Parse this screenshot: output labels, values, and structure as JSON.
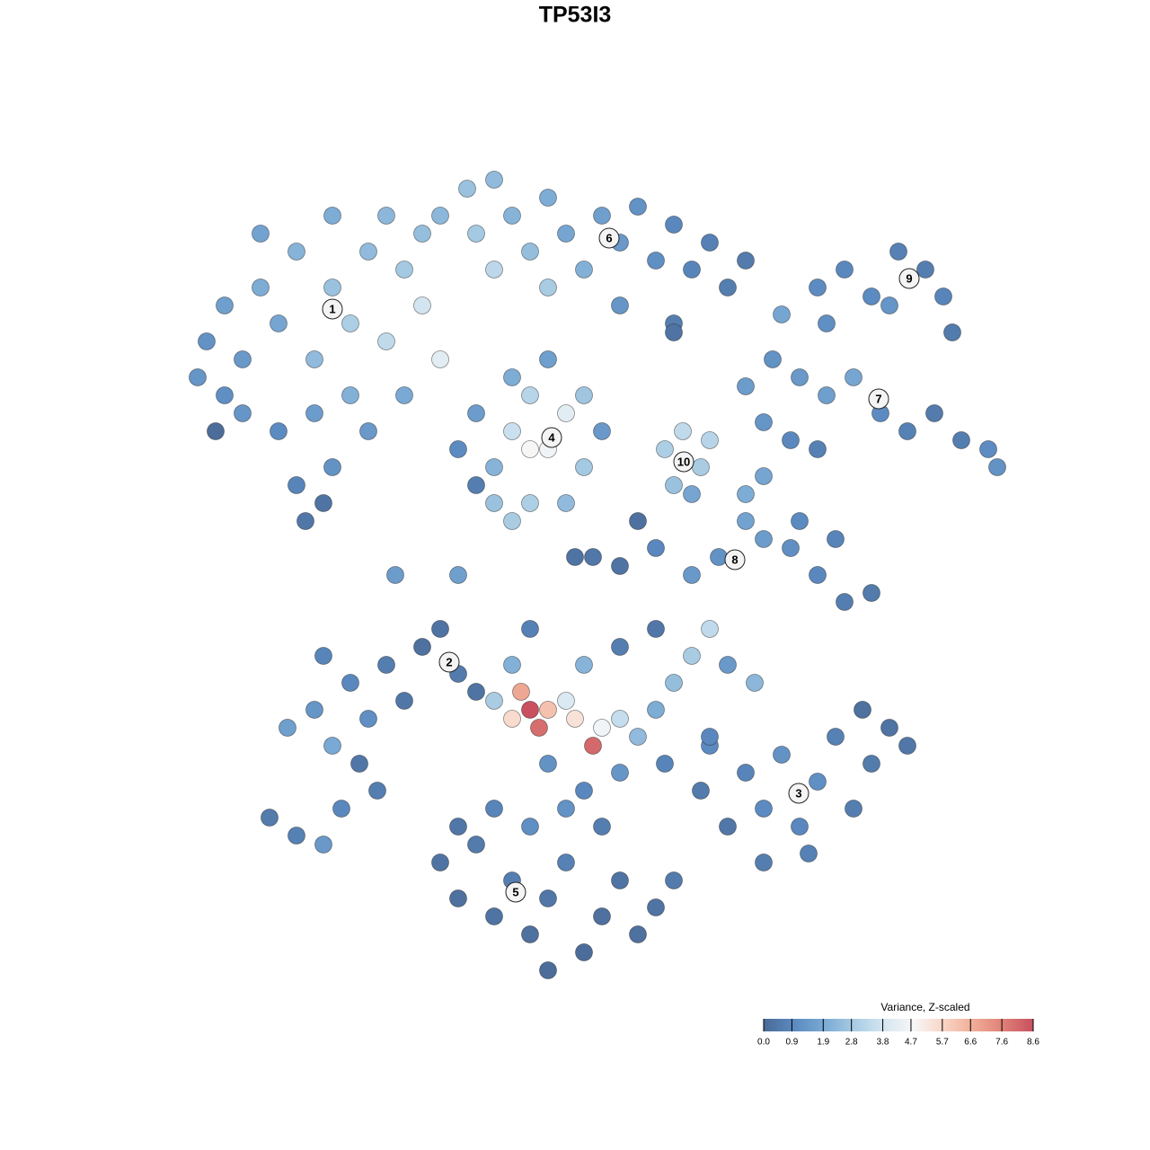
{
  "chart_data": {
    "type": "scatter",
    "title": "TP53I3",
    "xlim": [
      0,
      94
    ],
    "ylim": [
      0,
      92
    ],
    "x": [
      4,
      6,
      8,
      10,
      12,
      14,
      16,
      18,
      20,
      22,
      24,
      26,
      28,
      30,
      8,
      12,
      16,
      20,
      14,
      18,
      15,
      17,
      6,
      22,
      26,
      10,
      18,
      3,
      24,
      28,
      30,
      33,
      36,
      34,
      38,
      40,
      42,
      44,
      46,
      48,
      50,
      52,
      54,
      56,
      58,
      60,
      62,
      64,
      36,
      42,
      50,
      56,
      32,
      34,
      36,
      38,
      40,
      42,
      44,
      46,
      36,
      40,
      44,
      38,
      42,
      46,
      34,
      40,
      48,
      38,
      55,
      57,
      59,
      56,
      60,
      58,
      68,
      72,
      75,
      78,
      81,
      84,
      86,
      87,
      80,
      73,
      64,
      67,
      70,
      73,
      76,
      79,
      82,
      85,
      88,
      91,
      92,
      69,
      72,
      66,
      50,
      54,
      58,
      61,
      64,
      66,
      69,
      72,
      75,
      78,
      70,
      74,
      64,
      66,
      47,
      13,
      16,
      18,
      20,
      22,
      24,
      26,
      28,
      30,
      32,
      34,
      17,
      21,
      11,
      14,
      17,
      19,
      23,
      36,
      38,
      39,
      40,
      41,
      42,
      44,
      45,
      47,
      48,
      50,
      52,
      54,
      56,
      58,
      60,
      62,
      46,
      50,
      54,
      42,
      46,
      50,
      55,
      60,
      40,
      38,
      65,
      59,
      62,
      64,
      66,
      68,
      70,
      72,
      74,
      76,
      78,
      80,
      82,
      71,
      66,
      77,
      60,
      30,
      32,
      34,
      36,
      38,
      40,
      42,
      44,
      46,
      48,
      50,
      52,
      54,
      36,
      40,
      44,
      48,
      42,
      32,
      56,
      25,
      32,
      45,
      52,
      5,
      56
    ],
    "y": [
      72,
      76,
      70,
      78,
      74,
      82,
      70,
      78,
      74,
      82,
      72,
      80,
      76,
      70,
      64,
      62,
      64,
      66,
      56,
      58,
      52,
      54,
      66,
      62,
      66,
      84,
      86,
      68,
      86,
      84,
      86,
      89,
      90,
      84,
      86,
      82,
      88,
      84,
      80,
      86,
      83,
      87,
      81,
      85,
      80,
      83,
      78,
      81,
      80,
      78,
      76,
      74,
      60,
      64,
      58,
      62,
      66,
      60,
      64,
      58,
      54,
      54,
      54,
      68,
      70,
      66,
      56,
      60,
      62,
      52,
      60,
      62,
      58,
      56,
      61,
      55,
      75,
      78,
      80,
      77,
      82,
      80,
      77,
      73,
      76,
      74,
      67,
      70,
      68,
      66,
      68,
      64,
      62,
      64,
      61,
      60,
      58,
      61,
      60,
      63,
      47,
      49,
      46,
      48,
      52,
      50,
      49,
      46,
      43,
      44,
      52,
      50,
      55,
      57,
      48,
      29,
      31,
      27,
      34,
      30,
      36,
      32,
      38,
      40,
      35,
      33,
      37,
      25,
      19,
      17,
      16,
      20,
      22,
      32,
      30,
      33,
      31,
      29,
      31,
      32,
      30,
      27,
      29,
      30,
      28,
      31,
      34,
      37,
      40,
      36,
      36,
      38,
      40,
      25,
      22,
      24,
      25,
      27,
      40,
      36,
      34,
      22,
      18,
      24,
      20,
      26,
      18,
      23,
      28,
      20,
      25,
      29,
      27,
      15,
      14,
      31,
      28,
      14,
      10,
      16,
      8,
      12,
      6,
      10,
      14,
      4,
      8,
      12,
      6,
      9,
      20,
      18,
      20,
      18,
      2,
      18,
      12,
      46,
      46,
      48,
      52,
      62,
      73
    ],
    "color_values": [
      1.2,
      1.6,
      1.4,
      2.0,
      1.8,
      2.2,
      2.4,
      2.6,
      3.0,
      2.4,
      3.4,
      2.8,
      3.8,
      4.2,
      1.3,
      1.0,
      1.5,
      2.1,
      0.8,
      1.2,
      0.4,
      0.3,
      1.1,
      1.4,
      1.9,
      1.7,
      2.0,
      1.3,
      2.3,
      2.5,
      2.3,
      2.6,
      2.4,
      2.8,
      2.2,
      2.5,
      2.0,
      1.8,
      2.1,
      1.6,
      1.4,
      1.2,
      1.1,
      0.9,
      0.8,
      0.7,
      0.6,
      0.5,
      3.3,
      2.9,
      1.3,
      0.6,
      1.0,
      1.5,
      2.2,
      3.6,
      3.2,
      4.6,
      4.2,
      2.8,
      2.6,
      3.0,
      2.4,
      2.0,
      1.6,
      2.7,
      0.6,
      4.8,
      1.4,
      2.9,
      3.0,
      3.4,
      2.9,
      2.6,
      3.2,
      1.8,
      1.8,
      1.0,
      0.9,
      1.0,
      0.7,
      0.6,
      0.8,
      0.5,
      1.3,
      1.1,
      1.5,
      1.2,
      1.4,
      1.6,
      1.8,
      1.0,
      0.7,
      0.5,
      0.6,
      1.0,
      1.2,
      0.9,
      0.7,
      1.3,
      0.3,
      0.9,
      1.4,
      1.2,
      1.7,
      1.5,
      1.1,
      0.9,
      0.6,
      0.5,
      1.0,
      0.8,
      2.0,
      1.8,
      0.4,
      1.6,
      1.3,
      1.9,
      0.9,
      1.1,
      0.6,
      0.4,
      0.2,
      0.3,
      0.5,
      0.3,
      0.8,
      0.4,
      0.5,
      0.7,
      1.4,
      0.9,
      0.6,
      2.9,
      5.6,
      6.8,
      8.6,
      8.0,
      6.2,
      4.0,
      5.4,
      8.1,
      4.6,
      3.5,
      2.4,
      2.0,
      2.5,
      2.9,
      3.4,
      1.4,
      2.2,
      0.6,
      0.4,
      1.2,
      0.9,
      1.3,
      0.8,
      1.0,
      0.7,
      2.1,
      2.3,
      0.5,
      0.4,
      0.8,
      1.0,
      1.2,
      0.9,
      1.1,
      0.7,
      0.6,
      0.5,
      0.3,
      0.4,
      0.7,
      0.6,
      0.2,
      0.9,
      0.3,
      0.2,
      0.5,
      0.3,
      0.6,
      0.2,
      0.4,
      0.7,
      0.1,
      0.2,
      0.3,
      0.2,
      0.3,
      0.8,
      1.1,
      1.2,
      0.6,
      0.1,
      0.4,
      0.5,
      1.5,
      1.6,
      0.3,
      0.2,
      0.1,
      0.3
    ],
    "cluster_labels": [
      {
        "label": "1",
        "x": 18,
        "y": 75.6
      },
      {
        "label": "2",
        "x": 31,
        "y": 36.3
      },
      {
        "label": "3",
        "x": 69.9,
        "y": 21.7
      },
      {
        "label": "4",
        "x": 42.4,
        "y": 61.3
      },
      {
        "label": "5",
        "x": 38.4,
        "y": 10.7
      },
      {
        "label": "6",
        "x": 48.8,
        "y": 83.5
      },
      {
        "label": "7",
        "x": 78.8,
        "y": 65.6
      },
      {
        "label": "8",
        "x": 62.8,
        "y": 47.7
      },
      {
        "label": "9",
        "x": 82.2,
        "y": 79
      },
      {
        "label": "10",
        "x": 57.1,
        "y": 58.6
      }
    ],
    "colorbar": {
      "title": "Variance, Z-scaled",
      "lim": [
        0,
        8.6
      ],
      "ticks": [
        {
          "value": 0,
          "label": "0.0"
        },
        0.9,
        1.9,
        2.8,
        3.8,
        4.7,
        5.7,
        6.6,
        7.6,
        8.6
      ],
      "colors": [
        "#4a6a96",
        "#5b8ac0",
        "#79a9d4",
        "#a7cbe3",
        "#d4e6f1",
        "#f7f7f7",
        "#f9d6c6",
        "#f0ac96",
        "#df8077",
        "#c8505f"
      ]
    }
  }
}
